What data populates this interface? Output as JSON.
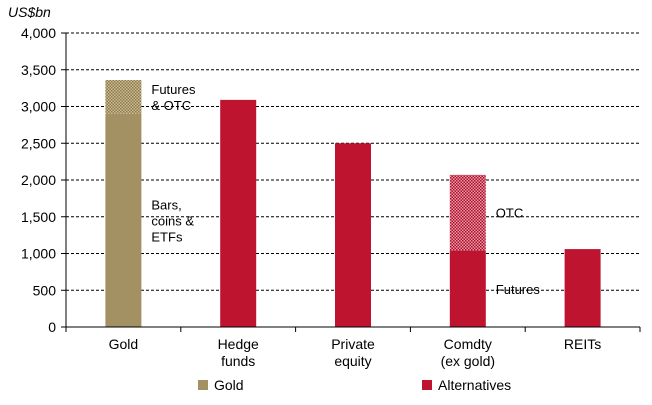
{
  "chart_data": {
    "type": "bar",
    "stacked": true,
    "unit_label": "US$bn",
    "ylim": [
      0,
      4000
    ],
    "yticks": [
      "0",
      "500",
      "1,000",
      "1,500",
      "2,000",
      "2,500",
      "3,000",
      "3,500",
      "4,000"
    ],
    "ytick_values": [
      0,
      500,
      1000,
      1500,
      2000,
      2500,
      3000,
      3500,
      4000
    ],
    "grid": true,
    "legend_position": "bottom",
    "categories": [
      [
        "Gold"
      ],
      [
        "Hedge",
        "funds"
      ],
      [
        "Private",
        "equity"
      ],
      [
        "Comdty",
        "(ex gold)"
      ],
      [
        "REITs"
      ]
    ],
    "bars": [
      {
        "category": "Gold",
        "segments": [
          {
            "label": [
              "Bars,",
              "coins &",
              "ETFs"
            ],
            "value": 2900,
            "fill": "solid",
            "color": "#a39063"
          },
          {
            "label": [
              "Futures",
              "& OTC"
            ],
            "value": 460,
            "fill": "dotted",
            "color": "#a39063"
          }
        ]
      },
      {
        "category": "Hedge funds",
        "segments": [
          {
            "label": [],
            "value": 3090,
            "fill": "solid",
            "color": "#be1430"
          }
        ]
      },
      {
        "category": "Private equity",
        "segments": [
          {
            "label": [],
            "value": 2500,
            "fill": "solid",
            "color": "#be1430"
          }
        ]
      },
      {
        "category": "Comdty (ex gold)",
        "segments": [
          {
            "label": [
              "Futures"
            ],
            "value": 1040,
            "fill": "solid",
            "color": "#be1430"
          },
          {
            "label": [
              "OTC"
            ],
            "value": 1030,
            "fill": "dotted",
            "color": "#be1430"
          }
        ]
      },
      {
        "category": "REITs",
        "segments": [
          {
            "label": [],
            "value": 1060,
            "fill": "solid",
            "color": "#be1430"
          }
        ]
      }
    ],
    "legend": [
      {
        "name": "Gold",
        "color": "#a39063"
      },
      {
        "name": "Alternatives",
        "color": "#be1430"
      }
    ]
  }
}
